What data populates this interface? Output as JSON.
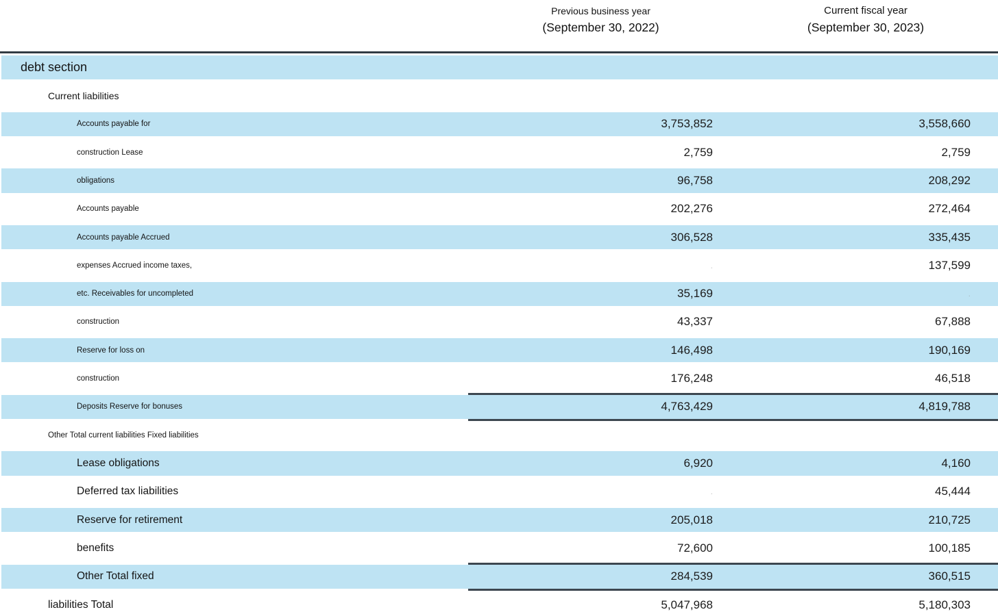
{
  "colors": {
    "row_highlight": "#bee3f3",
    "header_rule": "#323c44",
    "total_border": "#3d4750",
    "text": "#141414"
  },
  "table": {
    "empty_cell_mark": ".",
    "columns": [
      {
        "line1": "Previous business year",
        "line2": "(September 30, 2022)"
      },
      {
        "line1": "Current fiscal year",
        "line2": "(September 30, 2023)"
      }
    ],
    "rows": [
      {
        "label": "debt section",
        "indent": 1,
        "size": "xl",
        "shade": "blue",
        "prev": "",
        "curr": ""
      },
      {
        "label": "Current liabilities",
        "indent": 2,
        "size": "md",
        "shade": "white",
        "prev": "",
        "curr": ""
      },
      {
        "label": "Accounts payable for",
        "indent": 3,
        "size": "sm",
        "shade": "blue",
        "prev": "3,753,852",
        "curr": "3,558,660"
      },
      {
        "label": "construction Lease",
        "indent": 3,
        "size": "sm",
        "shade": "white",
        "prev": "2,759",
        "curr": "2,759"
      },
      {
        "label": "obligations",
        "indent": 3,
        "size": "sm",
        "shade": "blue",
        "prev": "96,758",
        "curr": "208,292"
      },
      {
        "label": "Accounts payable",
        "indent": 3,
        "size": "sm",
        "shade": "white",
        "prev": "202,276",
        "curr": "272,464"
      },
      {
        "label": "Accounts payable Accrued",
        "indent": 3,
        "size": "sm",
        "shade": "blue",
        "prev": "306,528",
        "curr": "335,435"
      },
      {
        "label": "expenses Accrued income taxes,",
        "indent": 3,
        "size": "sm",
        "shade": "white",
        "prev": "",
        "prev_faint": true,
        "curr": "137,599"
      },
      {
        "label": "etc. Receivables for uncompleted",
        "indent": 3,
        "size": "sm",
        "shade": "blue",
        "prev": "35,169",
        "curr": "",
        "curr_faint": true
      },
      {
        "label": "construction",
        "indent": 3,
        "size": "sm",
        "shade": "white",
        "prev": "43,337",
        "curr": "67,888"
      },
      {
        "label": "Reserve for loss on",
        "indent": 3,
        "size": "sm",
        "shade": "blue",
        "prev": "146,498",
        "curr": "190,169"
      },
      {
        "label": "construction",
        "indent": 3,
        "size": "sm",
        "shade": "white",
        "prev": "176,248",
        "curr": "46,518"
      },
      {
        "label": "Deposits Reserve for bonuses",
        "indent": 3,
        "size": "sm",
        "shade": "blue",
        "total": true,
        "prev": "4,763,429",
        "curr": "4,819,788"
      },
      {
        "label": "Other Total current liabilities Fixed liabilities",
        "indent": 2,
        "size": "sm",
        "shade": "white",
        "prev": "",
        "curr": ""
      },
      {
        "label": "Lease obligations",
        "indent": 3,
        "size": "lg",
        "shade": "blue",
        "prev": "6,920",
        "curr": "4,160"
      },
      {
        "label": "Deferred tax liabilities",
        "indent": 3,
        "size": "lg",
        "shade": "white",
        "prev": "",
        "prev_faint": true,
        "curr": "45,444"
      },
      {
        "label": "Reserve for retirement",
        "indent": 3,
        "size": "lg",
        "shade": "blue",
        "prev": "205,018",
        "curr": "210,725"
      },
      {
        "label": "benefits",
        "indent": 3,
        "size": "lg",
        "shade": "white",
        "prev": "72,600",
        "curr": "100,185"
      },
      {
        "label": "Other Total fixed",
        "indent": 3,
        "size": "lg",
        "shade": "blue",
        "total": true,
        "prev": "284,539",
        "curr": "360,515"
      },
      {
        "label": "liabilities Total",
        "indent": 2,
        "size": "lg",
        "shade": "white",
        "prev": "5,047,968",
        "curr": "5,180,303"
      }
    ]
  }
}
